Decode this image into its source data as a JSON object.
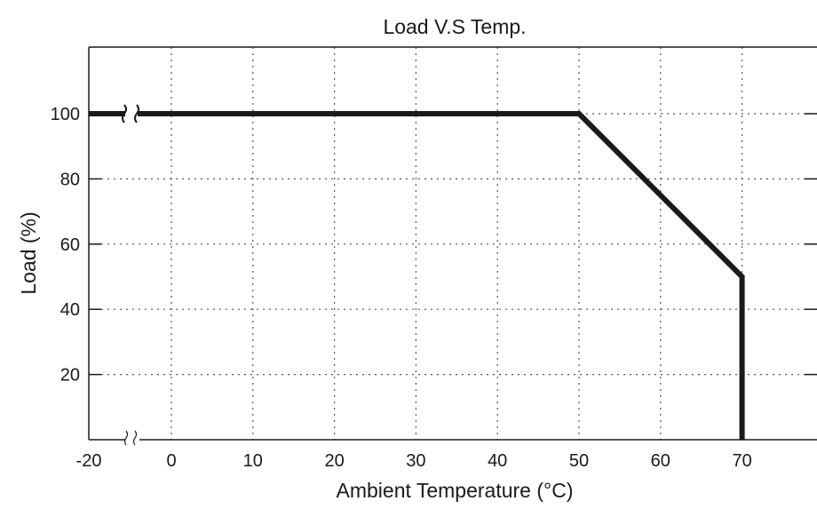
{
  "chart_data": {
    "type": "line",
    "title": "Load V.S Temp.",
    "xlabel": "Ambient Temperature (°C)",
    "ylabel": "Load (%)",
    "xlim": [
      -20,
      80
    ],
    "ylim": [
      0,
      120
    ],
    "x_ticks": [
      -20,
      0,
      10,
      20,
      30,
      40,
      50,
      60,
      70
    ],
    "y_ticks": [
      20,
      40,
      60,
      80,
      100
    ],
    "x_tick_labels": [
      "-20",
      "0",
      "10",
      "20",
      "30",
      "40",
      "50",
      "60",
      "70"
    ],
    "y_tick_labels": [
      "20",
      "40",
      "60",
      "80",
      "100"
    ],
    "grid": true,
    "grid_style": "dotted",
    "axis_break": {
      "axis": "x",
      "between": [
        -20,
        0
      ]
    },
    "series": [
      {
        "points": [
          [
            -20,
            100
          ],
          [
            50,
            100
          ],
          [
            70,
            50
          ],
          [
            70,
            0
          ]
        ]
      }
    ],
    "colors": {
      "line": "#1a1a1a",
      "grid": "#555555",
      "axis": "#1a1a1a"
    }
  }
}
